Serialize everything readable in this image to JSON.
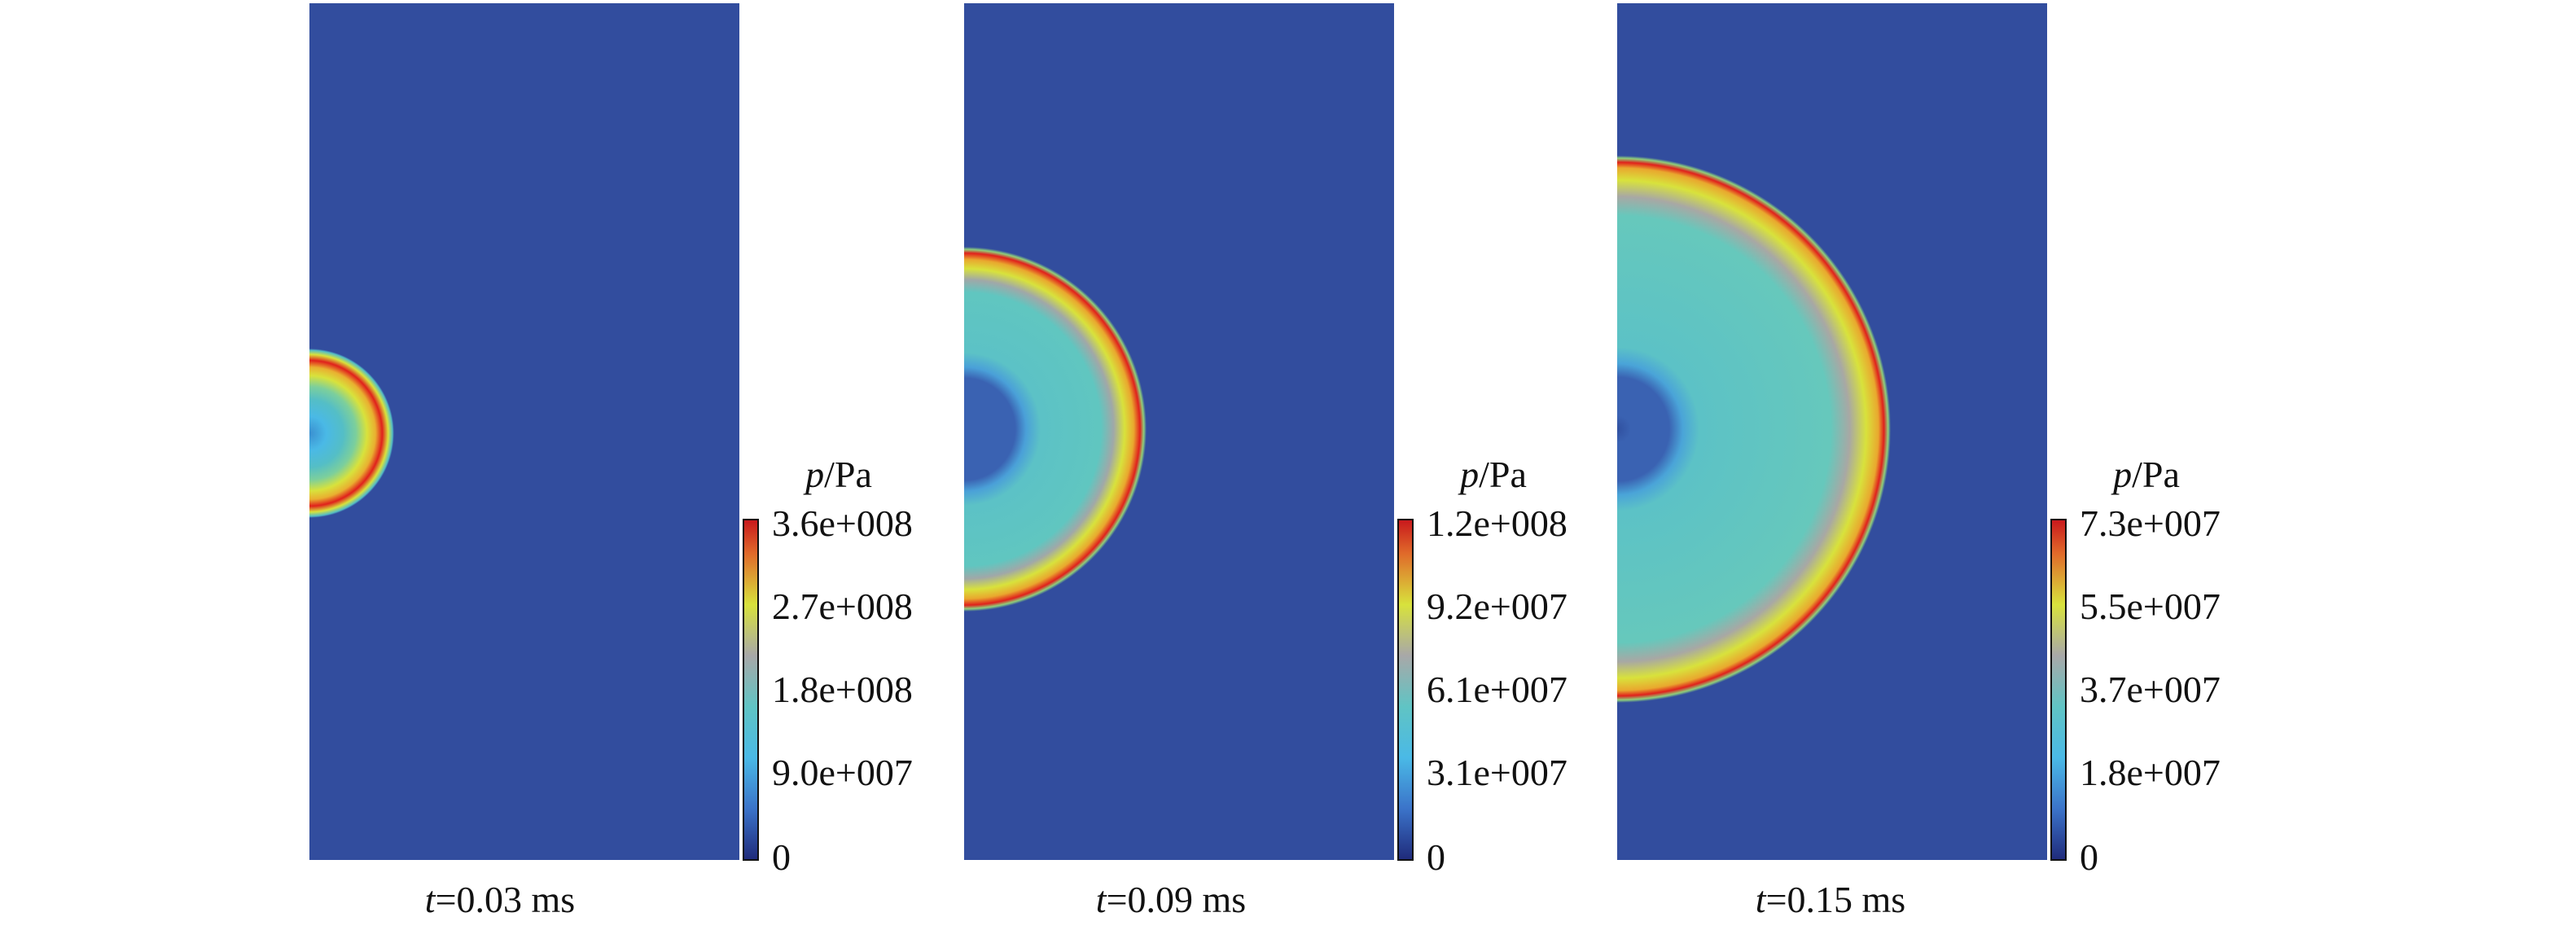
{
  "colors": {
    "background": "#324d9e",
    "ring_red": "#e0201c",
    "ring_yellow": "#e9e23a",
    "ring_green": "#8fd07a",
    "interior_cyan": "#54bec6",
    "core_blue": "#3a62b2"
  },
  "colorbar_stops": [
    "#1f2a7a",
    "#3b73c9",
    "#4ab9e6",
    "#60c4c4",
    "#a8a8a8",
    "#d8e23c",
    "#e06a2a",
    "#c8171c"
  ],
  "panels": [
    {
      "caption_var": "t",
      "caption_val": "=0.03 ms",
      "unit_var": "p",
      "unit_rest": "/Pa",
      "ticks": [
        "3.6e+008",
        "2.7e+008",
        "1.8e+008",
        "9.0e+007",
        "0"
      ]
    },
    {
      "caption_var": "t",
      "caption_val": "=0.09 ms",
      "unit_var": "p",
      "unit_rest": "/Pa",
      "ticks": [
        "1.2e+008",
        "9.2e+007",
        "6.1e+007",
        "3.1e+007",
        "0"
      ]
    },
    {
      "caption_var": "t",
      "caption_val": "=0.15 ms",
      "unit_var": "p",
      "unit_rest": "/Pa",
      "ticks": [
        "7.3e+007",
        "5.5e+007",
        "3.7e+007",
        "1.8e+007",
        "0"
      ]
    }
  ]
}
